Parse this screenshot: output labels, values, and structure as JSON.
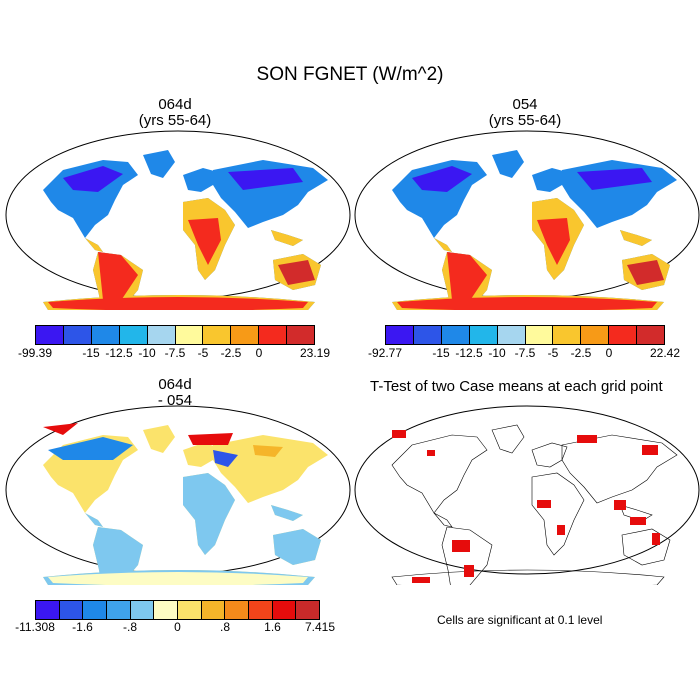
{
  "figure": {
    "title": "SON FGNET (W/m^2)"
  },
  "panels": {
    "top_left": {
      "title_line1": "064d",
      "title_line2": "(yrs 55-64)"
    },
    "top_right": {
      "title_line1": "054",
      "title_line2": "(yrs 55-64)"
    },
    "bottom_left": {
      "title_line1": "064d",
      "title_line2": "- 054"
    },
    "bottom_right": {
      "title": "T-Test of two Case means at each grid point",
      "note": "Cells are significant at 0.1 level"
    }
  },
  "colorbars": {
    "top_left": {
      "colors": [
        "#3b17f2",
        "#2d55e8",
        "#1f88e8",
        "#22b6ea",
        "#a6d6ef",
        "#fffa9c",
        "#f9c62e",
        "#f79a17",
        "#f42a1e",
        "#d22b2b"
      ],
      "labels": [
        "-99.39",
        "-15",
        "-12.5",
        "-10",
        "-7.5",
        "-5",
        "-2.5",
        "0",
        "23.19"
      ],
      "label_positions": [
        0,
        2,
        3,
        4,
        5,
        6,
        7,
        8,
        10
      ]
    },
    "top_right": {
      "colors": [
        "#3b17f2",
        "#2d55e8",
        "#1f88e8",
        "#22b6ea",
        "#a6d6ef",
        "#fffa9c",
        "#f9c62e",
        "#f79a17",
        "#f42a1e",
        "#d22b2b"
      ],
      "labels": [
        "-92.77",
        "-15",
        "-12.5",
        "-10",
        "-7.5",
        "-5",
        "-2.5",
        "0",
        "22.42"
      ],
      "label_positions": [
        0,
        2,
        3,
        4,
        5,
        6,
        7,
        8,
        10
      ]
    },
    "bottom_left": {
      "colors": [
        "#3b17f2",
        "#2d55e8",
        "#1f88e8",
        "#3fa2ea",
        "#7ec8ef",
        "#fdfcc4",
        "#fbe36b",
        "#f5b52a",
        "#f48a1b",
        "#f2441a",
        "#e60c0c",
        "#c92a2a"
      ],
      "labels": [
        "-11.308",
        "-1.6",
        "-.8",
        "0",
        ".8",
        "1.6",
        "7.415"
      ],
      "label_positions": [
        0,
        2,
        4,
        6,
        8,
        10,
        12
      ]
    }
  }
}
